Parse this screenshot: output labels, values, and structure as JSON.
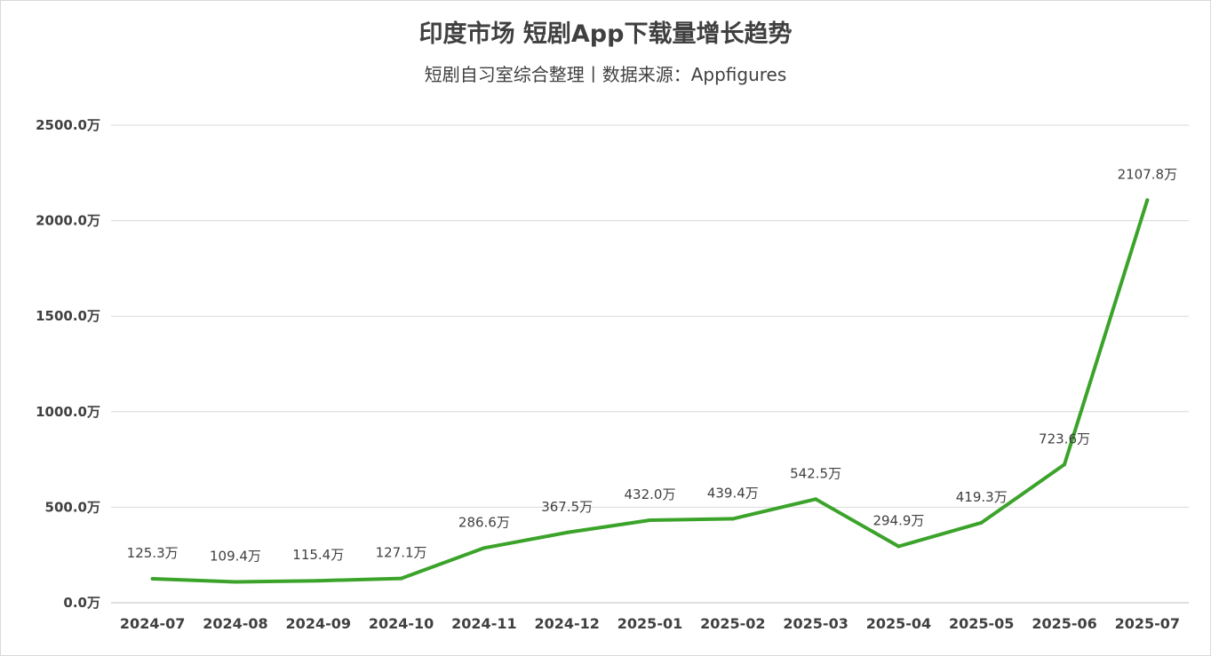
{
  "header": {
    "title": "印度市场 短剧App下载量增长趋势",
    "subtitle": "短剧自习室综合整理丨数据来源：Appfigures"
  },
  "chart_data": {
    "type": "line",
    "title": "印度市场 短剧App下载量增长趋势",
    "subtitle": "短剧自习室综合整理丨数据来源：Appfigures",
    "categories": [
      "2024-07",
      "2024-08",
      "2024-09",
      "2024-10",
      "2024-11",
      "2024-12",
      "2025-01",
      "2025-02",
      "2025-03",
      "2025-04",
      "2025-05",
      "2025-06",
      "2025-07"
    ],
    "series": [
      {
        "values": [
          125.3,
          109.4,
          115.4,
          127.1,
          286.6,
          367.5,
          432.0,
          439.4,
          542.5,
          294.9,
          419.3,
          723.6,
          2107.8
        ],
        "labels": [
          "125.3万",
          "109.4万",
          "115.4万",
          "127.1万",
          "286.6万",
          "367.5万",
          "432.0万",
          "439.4万",
          "542.5万",
          "294.9万",
          "419.3万",
          "723.6万",
          "2107.8万"
        ],
        "color": "#3ba32a"
      }
    ],
    "yticks": [
      "0.0万",
      "500.0万",
      "1000.0万",
      "1500.0万",
      "2000.0万",
      "2500.0万"
    ],
    "ylim": [
      0,
      2500
    ],
    "grid": true,
    "colors": {
      "line": "#3ba32a",
      "grid": "#d9d9d9",
      "text": "#404040"
    }
  }
}
